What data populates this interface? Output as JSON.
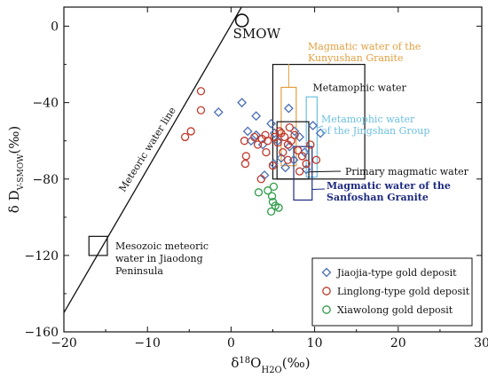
{
  "chart_data": {
    "type": "scatter",
    "xlabel": {
      "main": "δ",
      "sup": "18",
      "rest": "O",
      "sub": "H2O",
      "unit": "(‰)"
    },
    "ylabel": {
      "main": "δ D",
      "sub": "V-SMOW",
      "unit": "(‰)"
    },
    "xlim": [
      -20,
      30
    ],
    "ylim": [
      -160,
      10
    ],
    "xticks": [
      -20,
      -10,
      0,
      10,
      20,
      30
    ],
    "yticks": [
      0,
      -40,
      -80,
      -120,
      -160
    ],
    "xtick_labels": [
      "−20",
      "−10",
      "0",
      "10",
      "20",
      "30"
    ],
    "ytick_labels": [
      "0",
      "−40",
      "−80",
      "−120",
      "−160"
    ],
    "grid": false,
    "legend_position": "bottom-right",
    "series": [
      {
        "name": "Jiaojia-type gold deposit",
        "marker": "diamond",
        "color": "#4a6fb5",
        "points": [
          [
            -1.5,
            -45
          ],
          [
            1.3,
            -40
          ],
          [
            3,
            -47
          ],
          [
            2,
            -55
          ],
          [
            2.4,
            -60
          ],
          [
            3,
            -57
          ],
          [
            4.8,
            -51
          ],
          [
            5.2,
            -56
          ],
          [
            5.6,
            -60
          ],
          [
            6.9,
            -43
          ],
          [
            7.6,
            -55
          ],
          [
            8.2,
            -58
          ],
          [
            9.8,
            -52
          ],
          [
            10.7,
            -56
          ],
          [
            8.8,
            -66
          ],
          [
            5.1,
            -72
          ],
          [
            6,
            -69
          ],
          [
            7.5,
            -70
          ],
          [
            4,
            -78
          ],
          [
            9,
            -75
          ],
          [
            6.5,
            -74
          ],
          [
            3.8,
            -62
          ],
          [
            7,
            -63
          ]
        ]
      },
      {
        "name": "Linglong-type gold deposit",
        "marker": "circle",
        "color": "#c0392b",
        "points": [
          [
            -5.5,
            -58
          ],
          [
            -4.8,
            -55
          ],
          [
            -3.6,
            -34
          ],
          [
            -3.6,
            -44
          ],
          [
            1.6,
            -60
          ],
          [
            1.8,
            -68
          ],
          [
            1.7,
            -72
          ],
          [
            2.8,
            -58
          ],
          [
            3.2,
            -62
          ],
          [
            3.7,
            -59
          ],
          [
            4.1,
            -57
          ],
          [
            4.4,
            -60
          ],
          [
            5.2,
            -58
          ],
          [
            5.6,
            -61
          ],
          [
            6,
            -56
          ],
          [
            6.4,
            -58
          ],
          [
            6.8,
            -62
          ],
          [
            7.2,
            -60
          ],
          [
            7.6,
            -57
          ],
          [
            8,
            -65
          ],
          [
            8.5,
            -68
          ],
          [
            9,
            -72
          ],
          [
            9.5,
            -62
          ],
          [
            10.2,
            -70
          ],
          [
            6.2,
            -66
          ],
          [
            7,
            -53
          ],
          [
            5,
            -73
          ],
          [
            4.2,
            -66
          ],
          [
            3.6,
            -80
          ],
          [
            8.2,
            -76
          ],
          [
            6.8,
            -70
          ],
          [
            5.8,
            -55
          ]
        ]
      },
      {
        "name": "Xiawolong gold deposit",
        "marker": "circle",
        "color": "#2e9c48",
        "points": [
          [
            3.3,
            -87
          ],
          [
            4.4,
            -86
          ],
          [
            4.9,
            -89
          ],
          [
            5.0,
            -92
          ],
          [
            5.3,
            -94
          ],
          [
            5.7,
            -95
          ],
          [
            4.8,
            -97
          ],
          [
            5.1,
            -84
          ]
        ]
      }
    ],
    "smow": {
      "label": "SMOW",
      "x": 1.3,
      "y": 3
    },
    "meteoric_line": {
      "label": "Meteoric water line",
      "x1": -20,
      "y1": -150,
      "x2": 1.25,
      "y2": 10
    },
    "boxes": [
      {
        "label": "Metamophic water",
        "x0": 5,
        "x1": 16,
        "y0": -80,
        "y1": -20,
        "color": "#111111"
      },
      {
        "label": "Magmatic water of the Kunyushan Granite",
        "x0": 6,
        "x1": 7.8,
        "y0": -73,
        "y1": -32,
        "color": "#e0a040"
      },
      {
        "label": "Metamophic water of the Jingshan Group",
        "x0": 9,
        "x1": 10.3,
        "y0": -79,
        "y1": -37,
        "color": "#6cc0e0"
      },
      {
        "label": "Primary magmatic water",
        "x0": 5.5,
        "x1": 9.3,
        "y0": -80,
        "y1": -50,
        "color": "#111111"
      },
      {
        "label": "Magmatic water of the Sanfoshan Granite",
        "x0": 7.5,
        "x1": 9.7,
        "y0": -91,
        "y1": -63,
        "color": "#1e2a80"
      },
      {
        "label": "Mesozoic meteoric water in Jiaodong Peninsula",
        "x0": -17,
        "x1": -14.8,
        "y0": -120,
        "y1": -110,
        "color": "#111111"
      }
    ]
  }
}
